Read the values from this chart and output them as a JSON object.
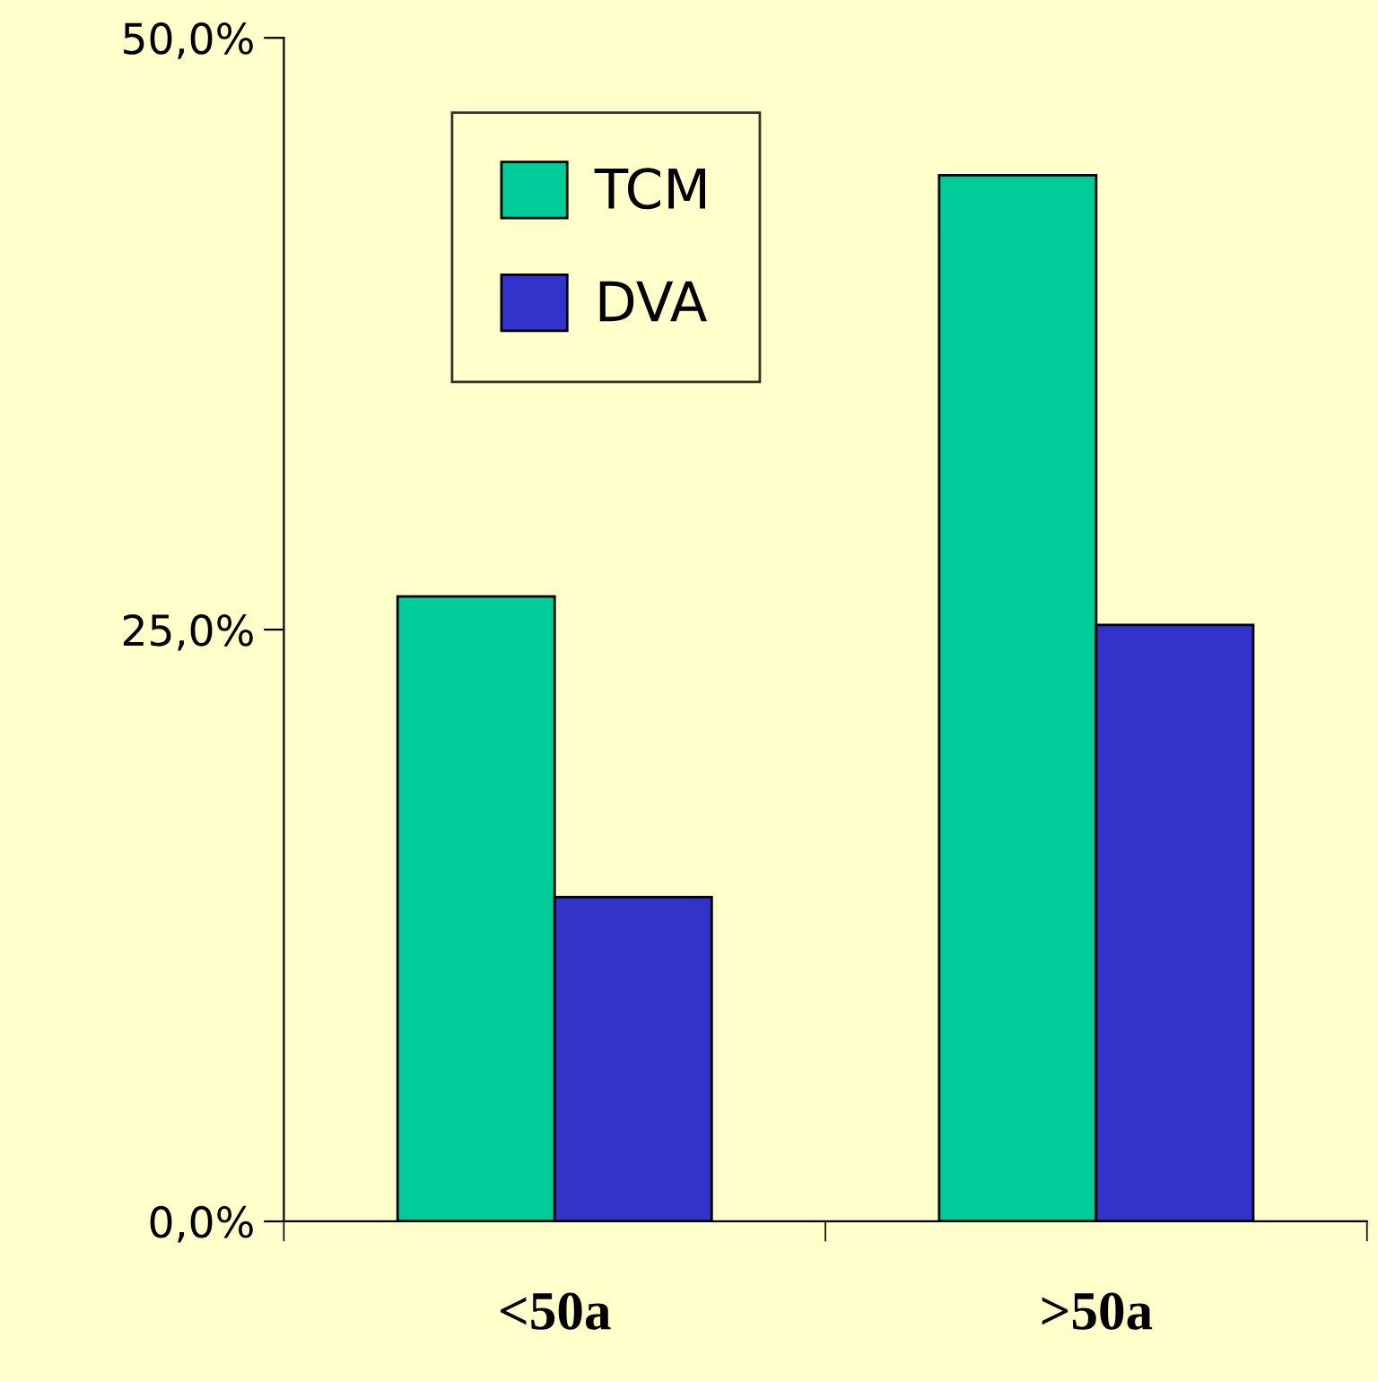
{
  "chart_data": {
    "type": "bar",
    "categories": [
      "<50a",
      ">50a"
    ],
    "series": [
      {
        "name": "TCM",
        "color": "#00cc99",
        "values": [
          26.4,
          44.2
        ]
      },
      {
        "name": "DVA",
        "color": "#3333cc",
        "values": [
          13.7,
          25.2
        ]
      }
    ],
    "ylim": [
      0,
      50
    ],
    "yticks": [
      {
        "value": 0,
        "label": "0,0%"
      },
      {
        "value": 25,
        "label": "25,0%"
      },
      {
        "value": 50,
        "label": "50,0%"
      }
    ],
    "legend": "top left"
  }
}
